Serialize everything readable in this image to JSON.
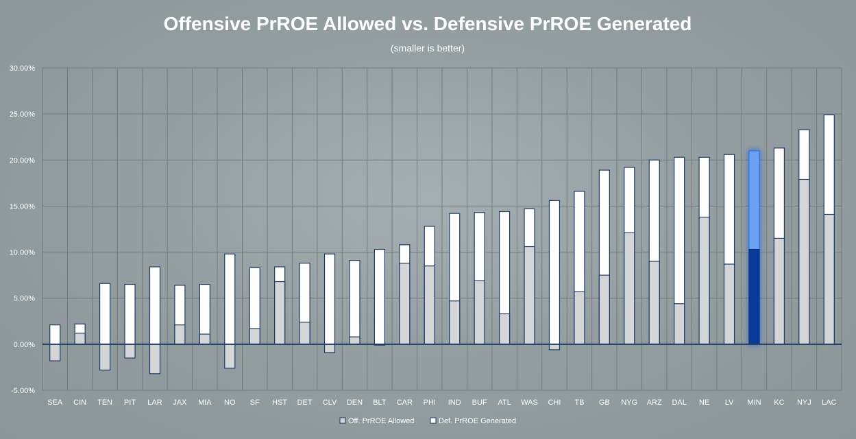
{
  "chart_data": {
    "type": "bar",
    "title": "Offensive PrROE Allowed vs. Defensive PrROE Generated",
    "subtitle": "(smaller is better)",
    "categories": [
      "SEA",
      "CIN",
      "TEN",
      "PIT",
      "LAR",
      "JAX",
      "MIA",
      "NO",
      "SF",
      "HST",
      "DET",
      "CLV",
      "DEN",
      "BLT",
      "CAR",
      "PHI",
      "IND",
      "BUF",
      "ATL",
      "WAS",
      "CHI",
      "TB",
      "GB",
      "NYG",
      "ARZ",
      "DAL",
      "NE",
      "LV",
      "MIN",
      "KC",
      "NYJ",
      "LAC"
    ],
    "series": [
      {
        "name": "Off. PrROE Allowed",
        "values": [
          -1.8,
          1.2,
          -2.8,
          -1.5,
          -3.2,
          2.1,
          1.1,
          -2.6,
          1.7,
          6.8,
          2.4,
          -0.9,
          0.8,
          -0.1,
          8.8,
          8.5,
          4.7,
          6.9,
          3.3,
          10.6,
          -0.6,
          5.7,
          7.5,
          12.1,
          9.0,
          4.4,
          13.8,
          8.7,
          10.3,
          11.5,
          17.9,
          14.1
        ]
      },
      {
        "name": "Def. PrROE Generated",
        "values": [
          2.1,
          2.2,
          6.6,
          6.5,
          8.4,
          6.4,
          6.5,
          9.8,
          8.3,
          8.4,
          8.8,
          9.8,
          9.1,
          10.3,
          10.8,
          12.8,
          14.2,
          14.3,
          14.4,
          14.7,
          15.6,
          16.6,
          18.9,
          19.2,
          20.0,
          20.3,
          20.3,
          20.6,
          21.0,
          21.3,
          23.3,
          24.9
        ]
      }
    ],
    "highlight": "MIN",
    "ylim": [
      -5,
      30
    ],
    "yticks": [
      "-5.00%",
      "0.00%",
      "5.00%",
      "10.00%",
      "15.00%",
      "20.00%",
      "25.00%",
      "30.00%"
    ],
    "grid": true,
    "legend_position": "bottom-center",
    "xlabel": "",
    "ylabel": ""
  },
  "colors": {
    "off_fill": "#d2d6d7",
    "def_fill": "#ffffff",
    "bar_stroke": "#1f3a63",
    "highlight_off": "#0a3a9c",
    "highlight_def": "#6aa2f5",
    "zero_line": "#1e3a5f",
    "grid": "#6f7b80"
  }
}
